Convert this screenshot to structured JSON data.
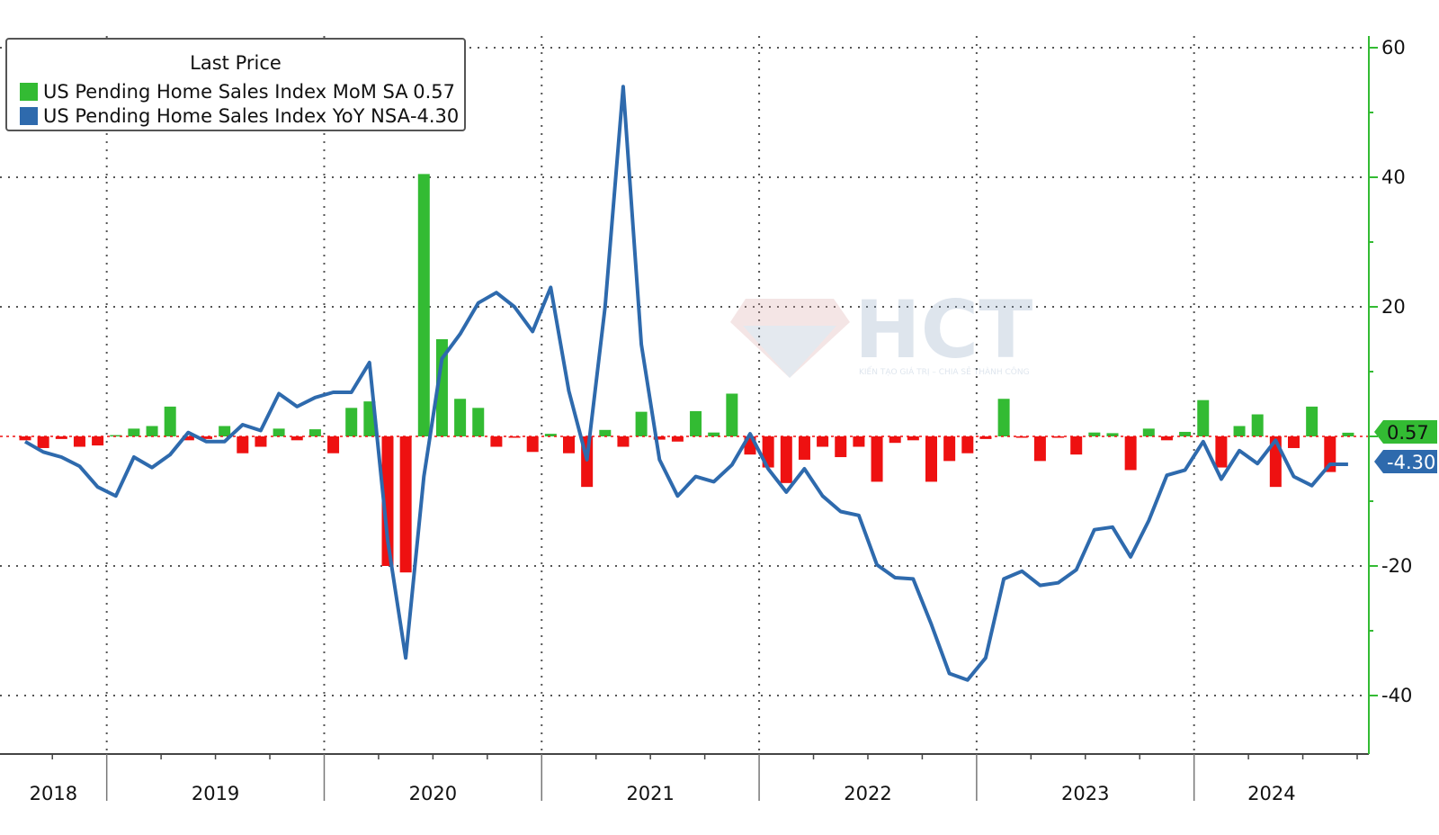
{
  "legend": {
    "title": "Last Price",
    "items": [
      {
        "label": "US Pending Home Sales Index MoM SA",
        "value": "0.57",
        "color": "#33bb33"
      },
      {
        "label": "US Pending Home Sales Index YoY NSA",
        "value": "-4.30",
        "color": "#2e6aad"
      }
    ]
  },
  "watermark": {
    "text": "HCT",
    "tagline": "KIẾN TẠO GIÁ TRỊ – CHIA SẺ THÀNH CÔNG"
  },
  "chart_data": {
    "type": "bar+line",
    "title": "",
    "xlabel": "",
    "ylabel": "",
    "ylim": [
      -46,
      62
    ],
    "yticks": [
      60,
      40,
      20,
      -20,
      -40
    ],
    "ytick_labels": [
      "60",
      "40",
      "20",
      "-20",
      "-40"
    ],
    "x_year_labels": [
      "2018",
      "2019",
      "2020",
      "2021",
      "2022",
      "2023",
      "2024"
    ],
    "x_start_month": "2018-08",
    "grid": true,
    "legend_position": "top-left",
    "positive_bar_color": "#33bb33",
    "negative_bar_color": "#ee1111",
    "line_color": "#2e6aad",
    "last_labels": [
      {
        "series": "US Pending Home Sales Index MoM SA",
        "text": "0.57",
        "value": 0.57,
        "color": "#33bb33"
      },
      {
        "series": "US Pending Home Sales Index YoY NSA",
        "text": "-4.30",
        "value": -4.3,
        "color": "#2e6aad"
      }
    ],
    "series": [
      {
        "name": "US Pending Home Sales Index MoM SA",
        "kind": "bar",
        "values": [
          -0.6,
          -1.8,
          -0.4,
          -1.6,
          -1.4,
          0.2,
          1.2,
          1.6,
          4.6,
          -0.6,
          -0.4,
          1.6,
          -2.6,
          -1.6,
          1.2,
          -0.6,
          1.1,
          -2.6,
          4.4,
          5.4,
          -20.0,
          -21.0,
          40.5,
          15.0,
          5.8,
          4.4,
          -1.6,
          -0.2,
          -2.4,
          0.4,
          -2.6,
          -7.8,
          1.0,
          -1.6,
          3.8,
          -0.5,
          -0.8,
          3.9,
          0.6,
          6.6,
          -2.8,
          -4.8,
          -7.2,
          -3.6,
          -1.6,
          -3.2,
          -1.6,
          -7.0,
          -1.0,
          -0.6,
          -7.0,
          -3.8,
          -2.6,
          -0.4,
          5.8,
          -0.2,
          -3.8,
          -0.1,
          -2.8,
          0.6,
          0.5,
          -5.2,
          1.2,
          -0.6,
          0.7,
          5.6,
          -4.8,
          1.6,
          3.4,
          -7.8,
          -1.8,
          4.6,
          -5.5,
          0.57
        ]
      },
      {
        "name": "US Pending Home Sales Index YoY NSA",
        "kind": "line",
        "values": [
          -0.8,
          -2.4,
          -3.2,
          -4.6,
          -7.8,
          -9.2,
          -3.2,
          -4.8,
          -2.8,
          0.6,
          -0.8,
          -0.8,
          1.8,
          0.9,
          6.6,
          4.6,
          6.0,
          6.8,
          6.8,
          11.4,
          -16.0,
          -34.2,
          -6.2,
          12.0,
          15.8,
          20.6,
          22.2,
          20.0,
          16.2,
          23.0,
          7.0,
          -3.6,
          20.0,
          54.0,
          14.2,
          -3.6,
          -9.2,
          -6.2,
          -7.0,
          -4.4,
          0.4,
          -5.0,
          -8.6,
          -5.0,
          -9.2,
          -11.6,
          -12.2,
          -19.8,
          -21.8,
          -22.0,
          -29.0,
          -36.6,
          -37.6,
          -34.2,
          -22.0,
          -20.8,
          -23.0,
          -22.6,
          -20.6,
          -14.4,
          -14.0,
          -18.6,
          -13.0,
          -6.0,
          -5.2,
          -0.8,
          -6.6,
          -2.2,
          -4.2,
          -0.6,
          -6.2,
          -7.6,
          -4.3,
          -4.3
        ]
      }
    ]
  }
}
